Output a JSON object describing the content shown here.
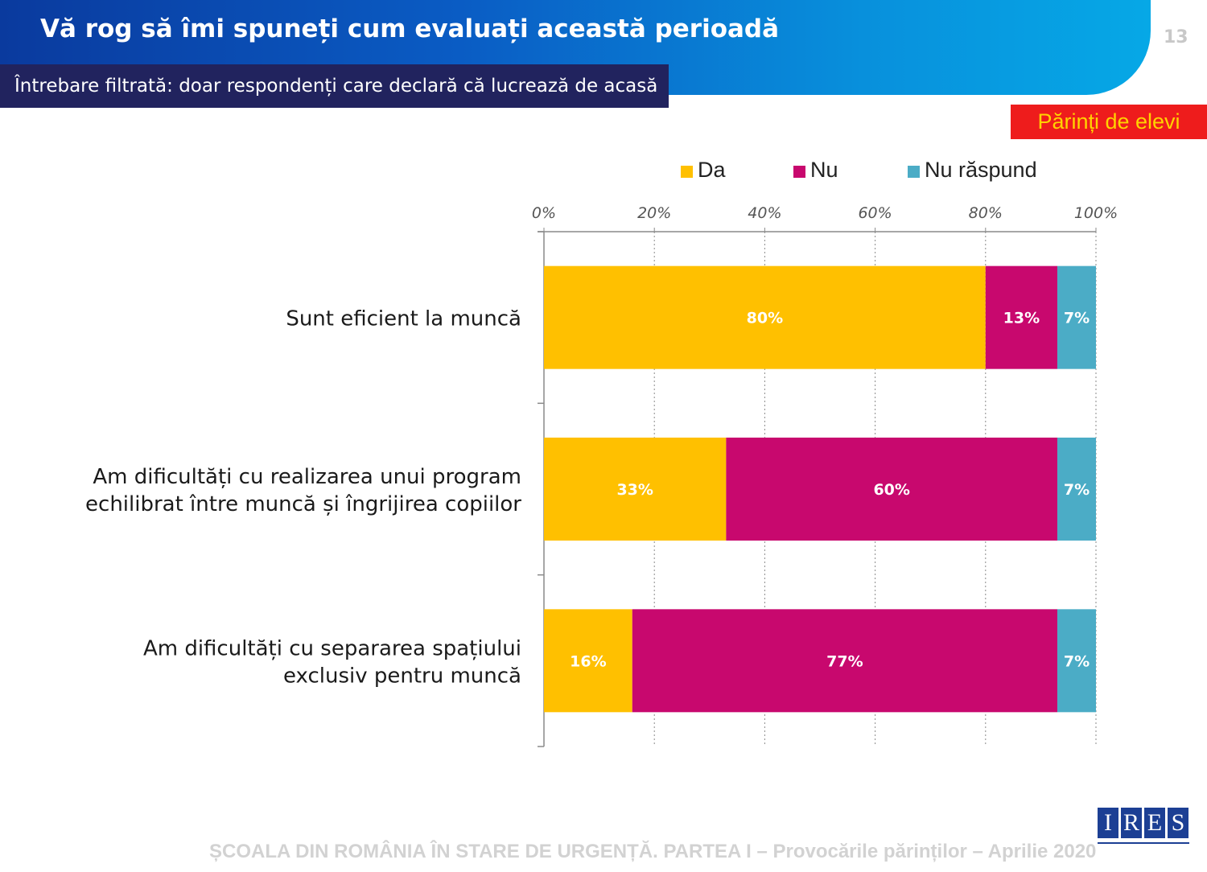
{
  "header": {
    "title": "Vă rog să îmi spuneți cum evaluați această perioadă",
    "page_number": "13",
    "filter_note": "Întrebare filtrată: doar respondenți care declară că lucrează de acasă",
    "segment_badge": "Părinți de elevi"
  },
  "footer": {
    "text": "ȘCOALA DIN ROMÂNIA ÎN STARE DE URGENȚĂ. PARTEA I – Provocările părinților – Aprilie 2020",
    "logo_letters": [
      "I",
      "R",
      "E",
      "S"
    ]
  },
  "legend": [
    {
      "label": "Da",
      "color": "#FFC000"
    },
    {
      "label": "Nu",
      "color": "#C8086E"
    },
    {
      "label": "Nu răspund",
      "color": "#4BACC6"
    }
  ],
  "chart_data": {
    "type": "bar",
    "orientation": "horizontal",
    "stacked": true,
    "percent_stacked": true,
    "categories": [
      [
        "Sunt eficient la muncă"
      ],
      [
        "Am dificultăți cu realizarea unui program",
        "echilibrat între muncă și îngrijirea copiilor"
      ],
      [
        "Am dificultăți cu separarea spațiului",
        "exclusiv pentru muncă"
      ]
    ],
    "series": [
      {
        "name": "Da",
        "color": "#FFC000",
        "values": [
          80,
          33,
          16
        ],
        "labels": [
          "80%",
          "33%",
          "16%"
        ]
      },
      {
        "name": "Nu",
        "color": "#C8086E",
        "values": [
          13,
          60,
          77
        ],
        "labels": [
          "13%",
          "60%",
          "77%"
        ]
      },
      {
        "name": "Nu răspund",
        "color": "#4BACC6",
        "values": [
          7,
          7,
          7
        ],
        "labels": [
          "7%",
          "7%",
          "7%"
        ]
      }
    ],
    "xlim": [
      0,
      100
    ],
    "x_ticks": [
      "0%",
      "20%",
      "40%",
      "60%",
      "80%",
      "100%"
    ],
    "x_axis_position": "top",
    "grid": "vertical dashed",
    "legend_position": "top"
  }
}
